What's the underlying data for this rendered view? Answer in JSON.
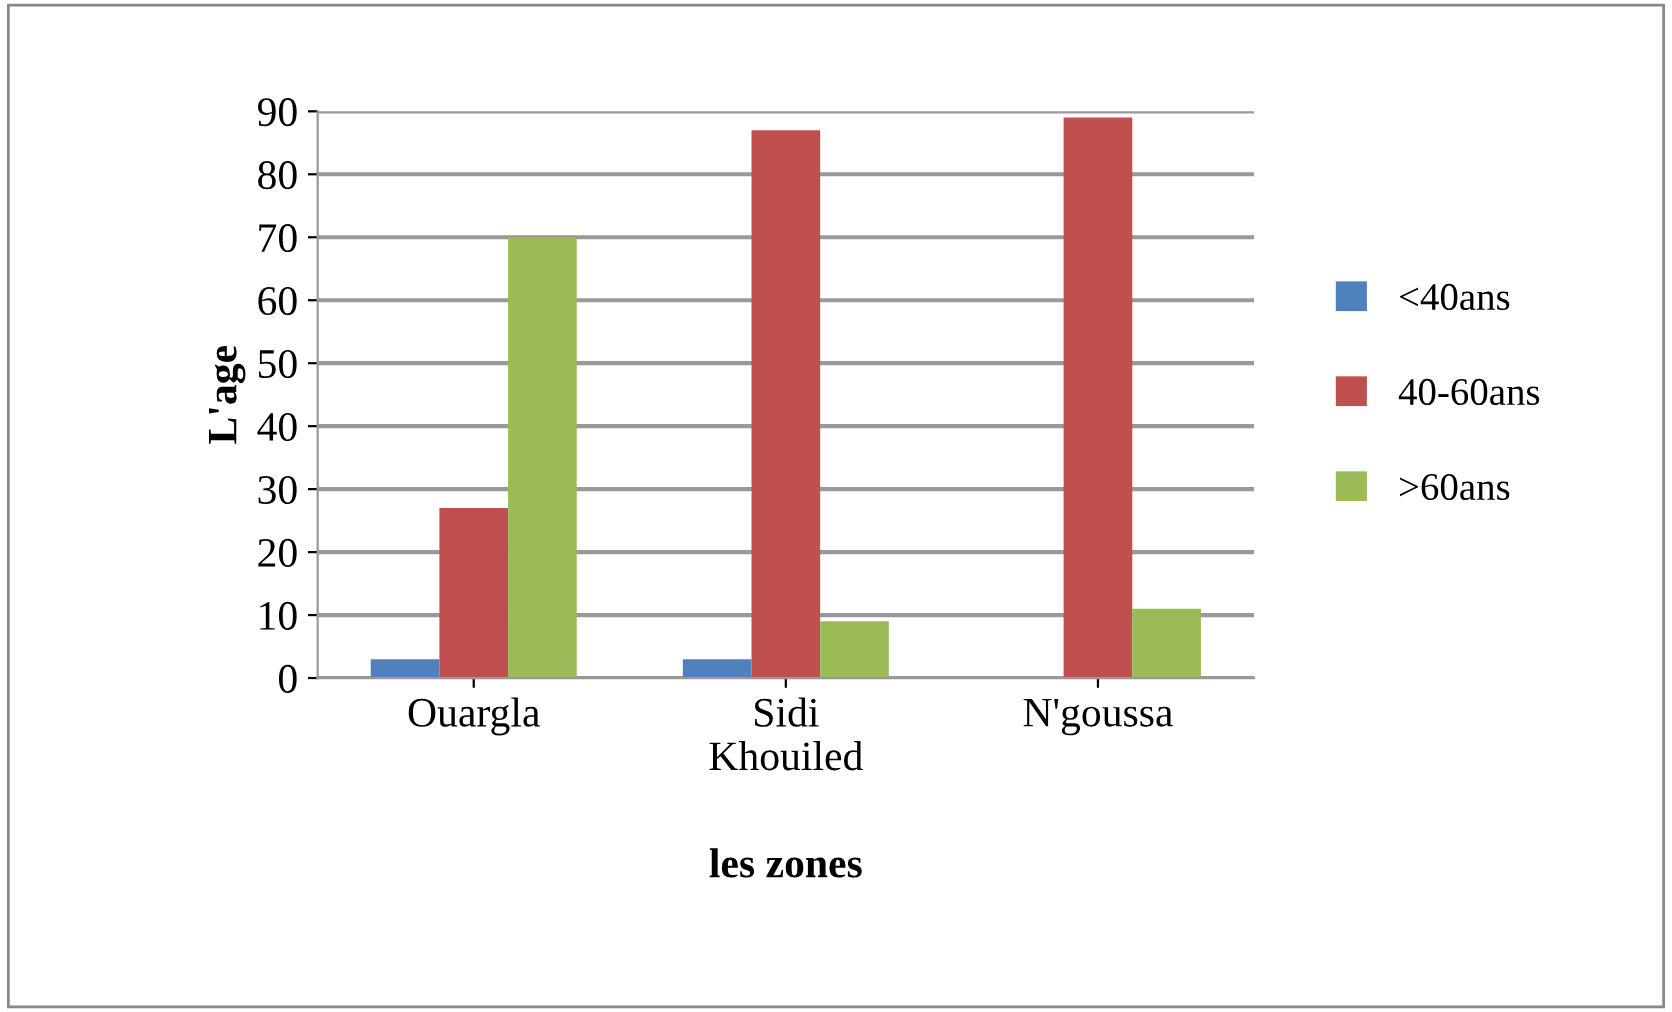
{
  "chart_data": {
    "type": "bar",
    "xlabel": "les zones",
    "ylabel": "L'age",
    "categories": [
      "Ouargla",
      "Sidi\nKhouiled",
      "N'goussa"
    ],
    "series": [
      {
        "name": "<40ans",
        "color": "#4f81bd",
        "values": [
          3,
          3,
          0
        ]
      },
      {
        "name": "40-60ans",
        "color": "#c0504d",
        "values": [
          27,
          87,
          89
        ]
      },
      {
        "name": ">60ans",
        "color": "#9bbb59",
        "values": [
          70,
          9,
          11
        ]
      }
    ],
    "ylim": [
      0,
      90
    ],
    "yticks": [
      0,
      10,
      20,
      30,
      40,
      50,
      60,
      70,
      80,
      90
    ],
    "grid": "y",
    "legend": "right"
  }
}
